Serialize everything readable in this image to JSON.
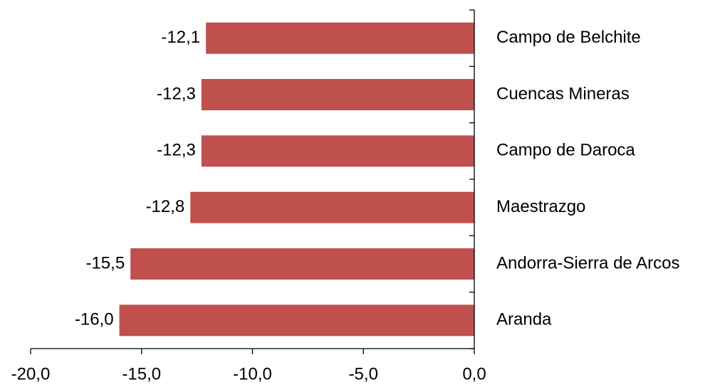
{
  "chart_data": {
    "type": "hbar",
    "categories": [
      "Campo de Belchite",
      "Cuencas Mineras",
      "Campo de Daroca",
      "Maestrazgo",
      "Andorra-Sierra de Arcos",
      "Aranda"
    ],
    "values": [
      -12.1,
      -12.3,
      -12.3,
      -12.8,
      -15.5,
      -16.0
    ],
    "value_labels": [
      "-12,1",
      "-12,3",
      "-12,3",
      "-12,8",
      "-15,5",
      "-16,0"
    ],
    "color": "#c0504d",
    "xlim": [
      -20,
      0
    ],
    "xticks": [
      {
        "value": -20,
        "label": "-20,0"
      },
      {
        "value": -15,
        "label": "-15,0"
      },
      {
        "value": -10,
        "label": "-10,0"
      },
      {
        "value": -5,
        "label": "-5,0"
      },
      {
        "value": 0,
        "label": "0,0"
      }
    ]
  }
}
